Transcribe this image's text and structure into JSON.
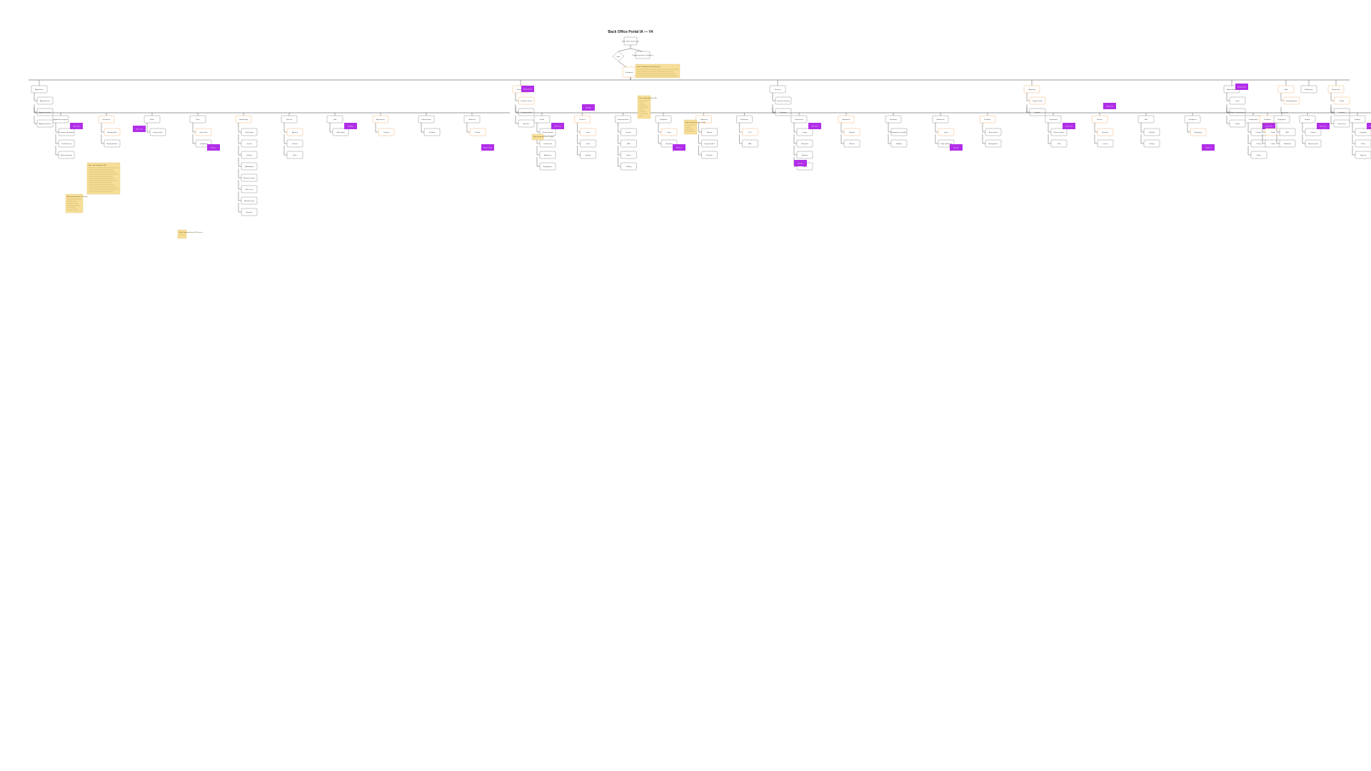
{
  "title": "Back Office Portal IA — V4",
  "colors": {
    "node_border": "#777777",
    "node_fill": "#ffffff",
    "orange": "#f0a35a",
    "orange_fill": "#fff6ee",
    "purple": "#b12ee8",
    "note": "#f7df9a",
    "line": "#333333"
  },
  "start_nodes": {
    "entry": "Back Office Portal Login",
    "decision": "Auth",
    "forgot": "Forgot password / Locked out",
    "dashboard": "Dashboard"
  },
  "sections": [
    {
      "label": "Applications",
      "subs": [
        "Application list",
        "Application detail",
        "Application forms"
      ],
      "children": [
        {
          "label": "Application overview",
          "leaves": [
            "Customer information",
            "Credit decision",
            "Bank statements"
          ]
        },
        {
          "label": "Documents",
          "leaves": [
            "Uploaded files",
            "Requested files"
          ]
        },
        {
          "label": "Notes",
          "leaves": [
            "Internal notes"
          ]
        },
        {
          "label": "Tasks",
          "leaves": [
            "Open tasks",
            "Completed"
          ]
        },
        {
          "label": "Underwriting",
          "leaves": [
            "Credit report",
            "Income",
            "Identity",
            "Affordability",
            "Business checks",
            "Risk score",
            "Manual review",
            "Referrals"
          ]
        },
        {
          "label": "Decision",
          "leaves": [
            "Approve",
            "Decline",
            "Refer"
          ]
        },
        {
          "label": "Offer",
          "leaves": [
            "Offer details"
          ]
        },
        {
          "label": "Agreements",
          "leaves": [
            "Contract"
          ]
        },
        {
          "label": "Disbursement",
          "leaves": [
            "Funding"
          ]
        },
        {
          "label": "Audit trail",
          "leaves": [
            "History"
          ]
        }
      ]
    },
    {
      "label": "Customers",
      "subs": [
        "Customer search",
        "Customer profile",
        "Accounts"
      ],
      "children": [
        {
          "label": "Profile",
          "leaves": [
            "Personal details",
            "Contact info",
            "Addresses",
            "Employment"
          ]
        },
        {
          "label": "Products",
          "leaves": [
            "Loans",
            "Cards",
            "Savings"
          ]
        },
        {
          "label": "Communications",
          "leaves": [
            "Emails",
            "SMS",
            "Letters",
            "Call logs"
          ]
        },
        {
          "label": "Complaints",
          "leaves": [
            "Open",
            "Resolved"
          ]
        },
        {
          "label": "Collections",
          "leaves": [
            "Arrears",
            "Payment plans",
            "Promises"
          ]
        },
        {
          "label": "Verification",
          "leaves": [
            "KYC",
            "AML"
          ]
        }
      ]
    },
    {
      "label": "Servicing",
      "subs": [
        "Account servicing",
        "Payments"
      ],
      "children": [
        {
          "label": "Transactions",
          "leaves": [
            "Ledger",
            "Reversals",
            "Refunds",
            "Fees"
          ]
        },
        {
          "label": "Statements",
          "leaves": [
            "Monthly",
            "Annual"
          ]
        },
        {
          "label": "Schedules",
          "leaves": [
            "Repayment schedule",
            "Holidays"
          ]
        },
        {
          "label": "Settlements",
          "leaves": [
            "Quote",
            "Early settlement"
          ]
        },
        {
          "label": "Hardship",
          "leaves": [
            "Assessment",
            "Arrangement"
          ]
        }
      ]
    },
    {
      "label": "Reporting",
      "subs": [
        "Reports home",
        "Exports"
      ],
      "children": [
        {
          "label": "Operational",
          "leaves": [
            "Queue volumes",
            "SLA"
          ]
        },
        {
          "label": "Finance",
          "leaves": [
            "Revenue",
            "Losses"
          ]
        },
        {
          "label": "Risk",
          "leaves": [
            "Portfolio",
            "Vintage"
          ]
        },
        {
          "label": "Compliance",
          "leaves": [
            "Regulatory"
          ]
        }
      ]
    },
    {
      "label": "Administration",
      "subs": [
        "Users",
        "Roles & permissions",
        "Teams"
      ],
      "children": [
        {
          "label": "Configuration",
          "leaves": [
            "Products",
            "Pricing",
            "Rules"
          ]
        },
        {
          "label": "Templates",
          "leaves": [
            "Email",
            "Letters"
          ]
        },
        {
          "label": "Integrations",
          "leaves": [
            "APIs",
            "Webhooks"
          ]
        }
      ]
    },
    {
      "label": "Help",
      "subs": [
        "Knowledge base"
      ],
      "children": [
        {
          "label": "Support",
          "leaves": [
            "Contact",
            "Release notes"
          ]
        }
      ]
    },
    {
      "label": "Notifications",
      "subs": [],
      "children": []
    },
    {
      "label": "My account",
      "subs": [
        "Profile",
        "Security",
        "Preferences"
      ],
      "children": [
        {
          "label": "Settings",
          "leaves": [
            "Language",
            "Theme",
            "Sign out"
          ]
        }
      ]
    }
  ],
  "notes": [
    "Note: Dashboard shows KPIs by role",
    "Note: underwriting flow TBD",
    "Note: permissions drive visibility"
  ],
  "flags": [
    "New in V4",
    "Needs review",
    "Pending",
    "Phase 2"
  ]
}
